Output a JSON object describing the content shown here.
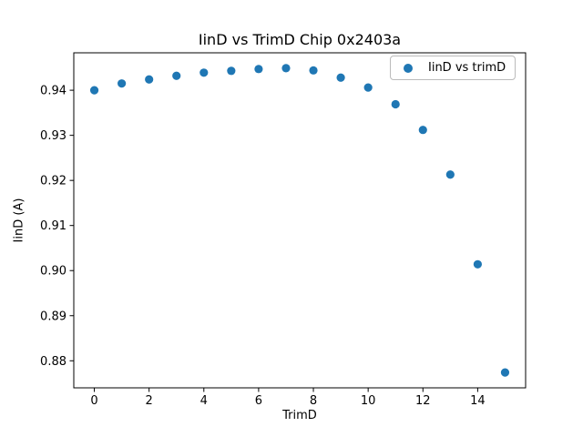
{
  "chart_data": {
    "type": "scatter",
    "title": "IinD vs TrimD Chip 0x2403a",
    "xlabel": "TrimD",
    "ylabel": "IinD (A)",
    "x": [
      0,
      1,
      2,
      3,
      4,
      5,
      6,
      7,
      8,
      9,
      10,
      11,
      12,
      13,
      14,
      15
    ],
    "y": [
      0.94,
      0.9415,
      0.9424,
      0.9432,
      0.9439,
      0.9443,
      0.9447,
      0.9449,
      0.9444,
      0.9428,
      0.9406,
      0.9369,
      0.9312,
      0.9213,
      0.9014,
      0.8774
    ],
    "xlim": [
      -0.75,
      15.75
    ],
    "ylim": [
      0.874,
      0.9483
    ],
    "xticks": [
      0,
      2,
      4,
      6,
      8,
      10,
      12,
      14
    ],
    "yticks": [
      0.88,
      0.89,
      0.9,
      0.91,
      0.92,
      0.93,
      0.94
    ],
    "ytick_decimals": 2,
    "grid": false,
    "legend": {
      "position": "upper right",
      "entries": [
        {
          "label": "IinD vs trimD",
          "marker_color": "#1f77b4"
        }
      ]
    },
    "marker": {
      "shape": "circle",
      "color": "#1f77b4",
      "radius_px": 4.6
    },
    "axis_color": "#000000"
  }
}
